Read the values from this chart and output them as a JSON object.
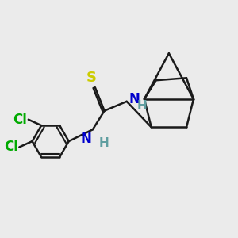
{
  "bg_color": "#ebebeb",
  "bond_color": "#1a1a1a",
  "S_color": "#cccc00",
  "N_color": "#0000cc",
  "H_color": "#5f9ea0",
  "Cl_color": "#00aa00",
  "line_width": 1.8,
  "fig_size": [
    3.0,
    3.0
  ],
  "dpi": 100,
  "xlim": [
    0,
    10
  ],
  "ylim": [
    0,
    10
  ]
}
